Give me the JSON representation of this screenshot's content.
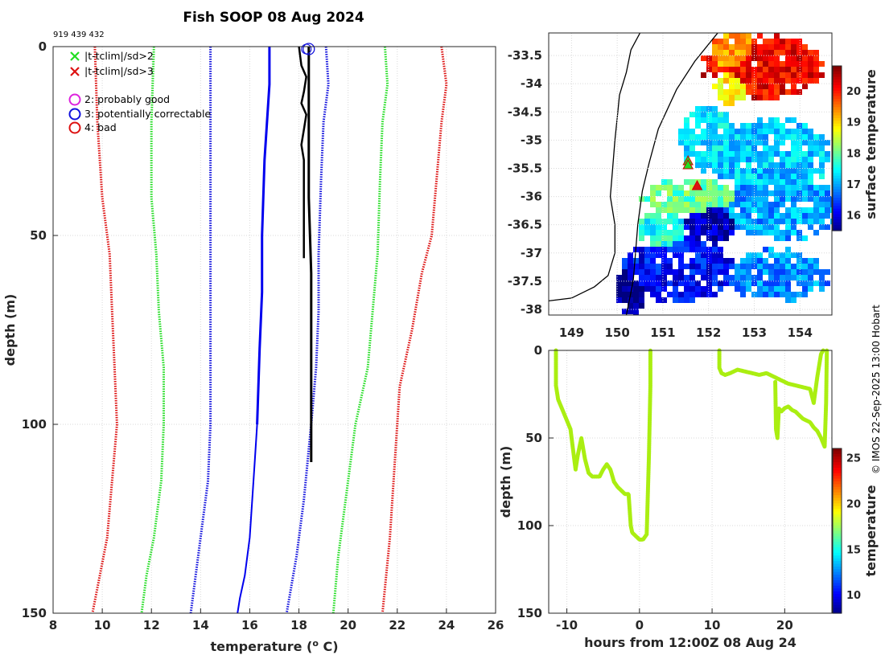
{
  "page": {
    "title": "Fish SOOP 08 Aug 2024",
    "platform_id": "919 439 432",
    "stamp": "© IMOS 22-Sep-2025 13:00 Hobart"
  },
  "chart_data": [
    {
      "type": "line",
      "name": "profile",
      "xlabel": "temperature (",
      "xlabel_sup": "o",
      "xlabel_end": " C)",
      "ylabel": "depth (m)",
      "xlim": [
        8,
        26
      ],
      "ylim": [
        150,
        0
      ],
      "xticks": [
        8,
        10,
        12,
        14,
        16,
        18,
        20,
        22,
        24,
        26
      ],
      "yticks": [
        0,
        50,
        100,
        150
      ],
      "legend": [
        {
          "symbol": "x",
          "color": "#22dd22",
          "label": "|t-tclim|/sd>2"
        },
        {
          "symbol": "x",
          "color": "#dd1111",
          "label": "|t-tclim|/sd>3"
        },
        {
          "symbol": "o",
          "color": "#dd22dd",
          "label": "2: probably good"
        },
        {
          "symbol": "o",
          "color": "#1111dd",
          "label": "3: potentially correctable"
        },
        {
          "symbol": "o",
          "color": "#dd1111",
          "label": "4: bad"
        }
      ],
      "series": [
        {
          "name": "clim-3sd-low",
          "color": "#dd1111",
          "style": "dotted",
          "x": [
            9.7,
            9.8,
            10.0,
            10.3,
            10.4,
            10.5,
            10.6,
            10.4,
            10.2,
            9.9,
            9.6
          ],
          "y": [
            0,
            20,
            40,
            55,
            70,
            85,
            100,
            115,
            130,
            140,
            150
          ]
        },
        {
          "name": "clim-2sd-low",
          "color": "#22dd22",
          "style": "dotted",
          "x": [
            12.1,
            12.0,
            12.0,
            12.2,
            12.3,
            12.5,
            12.5,
            12.4,
            12.1,
            11.8,
            11.6
          ],
          "y": [
            0,
            20,
            40,
            55,
            70,
            85,
            100,
            115,
            130,
            140,
            150
          ]
        },
        {
          "name": "clim-sd-low",
          "color": "#1111dd",
          "style": "dotted",
          "x": [
            14.4,
            14.4,
            14.4,
            14.4,
            14.4,
            14.4,
            14.4,
            14.3,
            14.0,
            13.8,
            13.6
          ],
          "y": [
            0,
            20,
            40,
            55,
            70,
            85,
            100,
            115,
            130,
            140,
            150
          ]
        },
        {
          "name": "clim-mean",
          "color": "#0000ee",
          "style": "solid",
          "width": 3,
          "x": [
            16.8,
            16.8,
            16.6,
            16.5,
            16.5,
            16.4,
            16.3
          ],
          "y": [
            0,
            10,
            30,
            50,
            65,
            80,
            100
          ]
        },
        {
          "name": "clim-mean-deep",
          "color": "#0000ee",
          "style": "solid",
          "width": 2,
          "x": [
            16.3,
            16.2,
            16.1,
            16.0,
            15.8,
            15.6,
            15.5
          ],
          "y": [
            100,
            110,
            120,
            130,
            140,
            146,
            150
          ]
        },
        {
          "name": "clim-sd-high",
          "color": "#1111dd",
          "style": "dotted",
          "x": [
            19.1,
            19.2,
            19.0,
            18.9,
            18.8,
            18.8,
            18.7,
            18.5,
            18.2,
            17.9,
            17.5
          ],
          "y": [
            0,
            10,
            20,
            35,
            55,
            70,
            85,
            100,
            120,
            135,
            150
          ]
        },
        {
          "name": "clim-2sd-high",
          "color": "#22dd22",
          "style": "dotted",
          "x": [
            21.5,
            21.6,
            21.4,
            21.3,
            21.2,
            21.0,
            20.8,
            20.3,
            19.9,
            19.6,
            19.4
          ],
          "y": [
            0,
            10,
            20,
            35,
            55,
            70,
            85,
            100,
            120,
            135,
            150
          ]
        },
        {
          "name": "clim-3sd-high",
          "color": "#dd1111",
          "style": "dotted",
          "x": [
            23.8,
            24.0,
            23.8,
            23.6,
            23.4,
            23.0,
            22.6,
            22.1,
            21.9,
            21.7,
            21.4
          ],
          "y": [
            0,
            10,
            20,
            35,
            50,
            60,
            75,
            90,
            110,
            130,
            150
          ]
        },
        {
          "name": "observed-upcast",
          "color": "#000000",
          "style": "solid",
          "width": 2.5,
          "x": [
            18.0,
            18.1,
            18.3,
            18.2,
            18.1,
            18.3,
            18.2,
            18.1,
            18.2,
            18.2,
            18.2
          ],
          "y": [
            0,
            5,
            8,
            12,
            15,
            18,
            22,
            26,
            30,
            40,
            56
          ]
        },
        {
          "name": "observed",
          "color": "#000000",
          "style": "solid",
          "width": 3,
          "x": [
            18.4,
            18.4,
            18.4,
            18.4,
            18.5,
            18.5,
            18.5,
            18.5
          ],
          "y": [
            0,
            10,
            25,
            40,
            60,
            80,
            100,
            110
          ]
        }
      ],
      "flag_markers": [
        {
          "x": 18.4,
          "y": 0,
          "flag": 3
        }
      ]
    },
    {
      "type": "heatmap",
      "name": "sst-map",
      "colorbar_label": "surface temperature",
      "xlim": [
        148.5,
        154.7
      ],
      "ylim": [
        -38.1,
        -33.1
      ],
      "xticks": [
        149,
        150,
        151,
        152,
        153,
        154
      ],
      "yticks": [
        -33.5,
        -34,
        -34.5,
        -35,
        -35.5,
        -36,
        -36.5,
        -37,
        -37.5,
        -38
      ],
      "ytick_labels": [
        "-33.5",
        "-34",
        "-34.5",
        "-35",
        "-35.5",
        "-36",
        "-36.5",
        "-37",
        "-37.5",
        "-38"
      ],
      "clim": [
        15.5,
        20.8
      ],
      "cticks": [
        16,
        17,
        18,
        19,
        20
      ],
      "coast": [
        [
          150.5,
          -33.1
        ],
        [
          150.3,
          -33.4
        ],
        [
          150.2,
          -33.8
        ],
        [
          150.05,
          -34.2
        ],
        [
          150.0,
          -34.6
        ],
        [
          149.95,
          -35.0
        ],
        [
          149.9,
          -35.5
        ],
        [
          149.85,
          -36.0
        ],
        [
          149.95,
          -36.5
        ],
        [
          149.95,
          -37.0
        ],
        [
          149.8,
          -37.4
        ],
        [
          149.5,
          -37.6
        ],
        [
          149.0,
          -37.8
        ],
        [
          148.5,
          -37.85
        ]
      ],
      "shelf": [
        [
          152.2,
          -33.1
        ],
        [
          151.7,
          -33.6
        ],
        [
          151.3,
          -34.1
        ],
        [
          150.9,
          -34.8
        ],
        [
          150.7,
          -35.4
        ],
        [
          150.55,
          -35.9
        ],
        [
          150.45,
          -36.5
        ],
        [
          150.4,
          -37.0
        ],
        [
          150.35,
          -37.5
        ],
        [
          150.2,
          -38.1
        ]
      ],
      "stations": [
        {
          "lon": 151.55,
          "lat": -35.38,
          "flag": "good"
        },
        {
          "lon": 151.55,
          "lat": -35.45,
          "flag": "good"
        },
        {
          "lon": 151.75,
          "lat": -35.82,
          "flag": "bad"
        }
      ],
      "sst_blobs": [
        {
          "lon": 153.2,
          "lat": -33.7,
          "rlon": 1.2,
          "rlat": 0.5,
          "t": 20.2
        },
        {
          "lon": 152.6,
          "lat": -33.5,
          "rlon": 0.5,
          "rlat": 0.4,
          "t": 19.4
        },
        {
          "lon": 152.5,
          "lat": -34.0,
          "rlon": 0.4,
          "rlat": 0.3,
          "t": 19.0
        },
        {
          "lon": 153.4,
          "lat": -35.3,
          "rlon": 1.1,
          "rlat": 0.6,
          "t": 17.2
        },
        {
          "lon": 152.0,
          "lat": -35.0,
          "rlon": 0.6,
          "rlat": 0.5,
          "t": 17.3
        },
        {
          "lon": 151.6,
          "lat": -36.0,
          "rlon": 0.9,
          "rlat": 0.3,
          "t": 18.0
        },
        {
          "lon": 153.6,
          "lat": -36.2,
          "rlon": 1.1,
          "rlat": 0.5,
          "t": 17.0
        },
        {
          "lon": 151.3,
          "lat": -37.3,
          "rlon": 1.1,
          "rlat": 0.5,
          "t": 16.2
        },
        {
          "lon": 152.0,
          "lat": -36.5,
          "rlon": 0.5,
          "rlat": 0.3,
          "t": 15.8
        },
        {
          "lon": 150.3,
          "lat": -37.7,
          "rlon": 0.3,
          "rlat": 0.4,
          "t": 15.6
        },
        {
          "lon": 153.5,
          "lat": -37.4,
          "rlon": 1.0,
          "rlat": 0.4,
          "t": 16.9
        },
        {
          "lon": 151.0,
          "lat": -36.6,
          "rlon": 0.5,
          "rlat": 0.3,
          "t": 17.6
        }
      ]
    },
    {
      "type": "scatter",
      "name": "depth-time",
      "xlabel": "hours from 12:00Z 08 Aug 24",
      "ylabel": "depth (m)",
      "colorbar_label": "temperature",
      "xlim": [
        -12.5,
        26.5
      ],
      "ylim": [
        150,
        0
      ],
      "xticks": [
        -10,
        0,
        10,
        20
      ],
      "yticks": [
        0,
        50,
        100,
        150
      ],
      "clim": [
        8,
        26
      ],
      "cticks": [
        10,
        15,
        20,
        25
      ],
      "point_color": "#aaee11",
      "tracks": [
        {
          "x": [
            -11.5,
            -11.5,
            -11.2,
            -10.5,
            -10.0,
            -9.5,
            -9.2,
            -8.8,
            -8.5,
            -8.0,
            -7.5,
            -7.0,
            -6.5,
            -6.0,
            -5.5,
            -5.0,
            -4.5,
            -4.0,
            -3.5,
            -3.0,
            -2.5,
            -2.0,
            -1.5,
            -1.2,
            -1.0,
            -0.5,
            0.0,
            0.5,
            1.0,
            1.3,
            1.5,
            1.5
          ],
          "y": [
            0,
            20,
            28,
            35,
            40,
            45,
            55,
            68,
            60,
            50,
            62,
            70,
            72,
            72,
            72,
            68,
            65,
            68,
            75,
            78,
            80,
            82,
            82,
            100,
            104,
            106,
            108,
            108,
            105,
            60,
            20,
            0
          ]
        },
        {
          "x": [
            11.0,
            11.0,
            11.3,
            11.8,
            12.5,
            13.5,
            14.5,
            15.5,
            16.5,
            17.5,
            18.5,
            19.5,
            20.5,
            21.5,
            22.5,
            23.5,
            24.0,
            24.5,
            25.0,
            25.3
          ],
          "y": [
            0,
            10,
            13,
            14,
            13,
            11,
            12,
            13,
            14,
            13,
            15,
            17,
            19,
            20,
            21,
            22,
            30,
            15,
            2,
            0
          ]
        },
        {
          "x": [
            18.7,
            18.8,
            19.0,
            19.2,
            19.5,
            20.0,
            20.5,
            21.0,
            21.5,
            22.0,
            22.5,
            23.0,
            23.5,
            24.0,
            24.5,
            25.0,
            25.5,
            25.7,
            25.8
          ],
          "y": [
            18,
            45,
            50,
            33,
            35,
            33,
            32,
            34,
            35,
            37,
            39,
            40,
            41,
            44,
            46,
            50,
            55,
            30,
            0
          ]
        }
      ]
    }
  ]
}
